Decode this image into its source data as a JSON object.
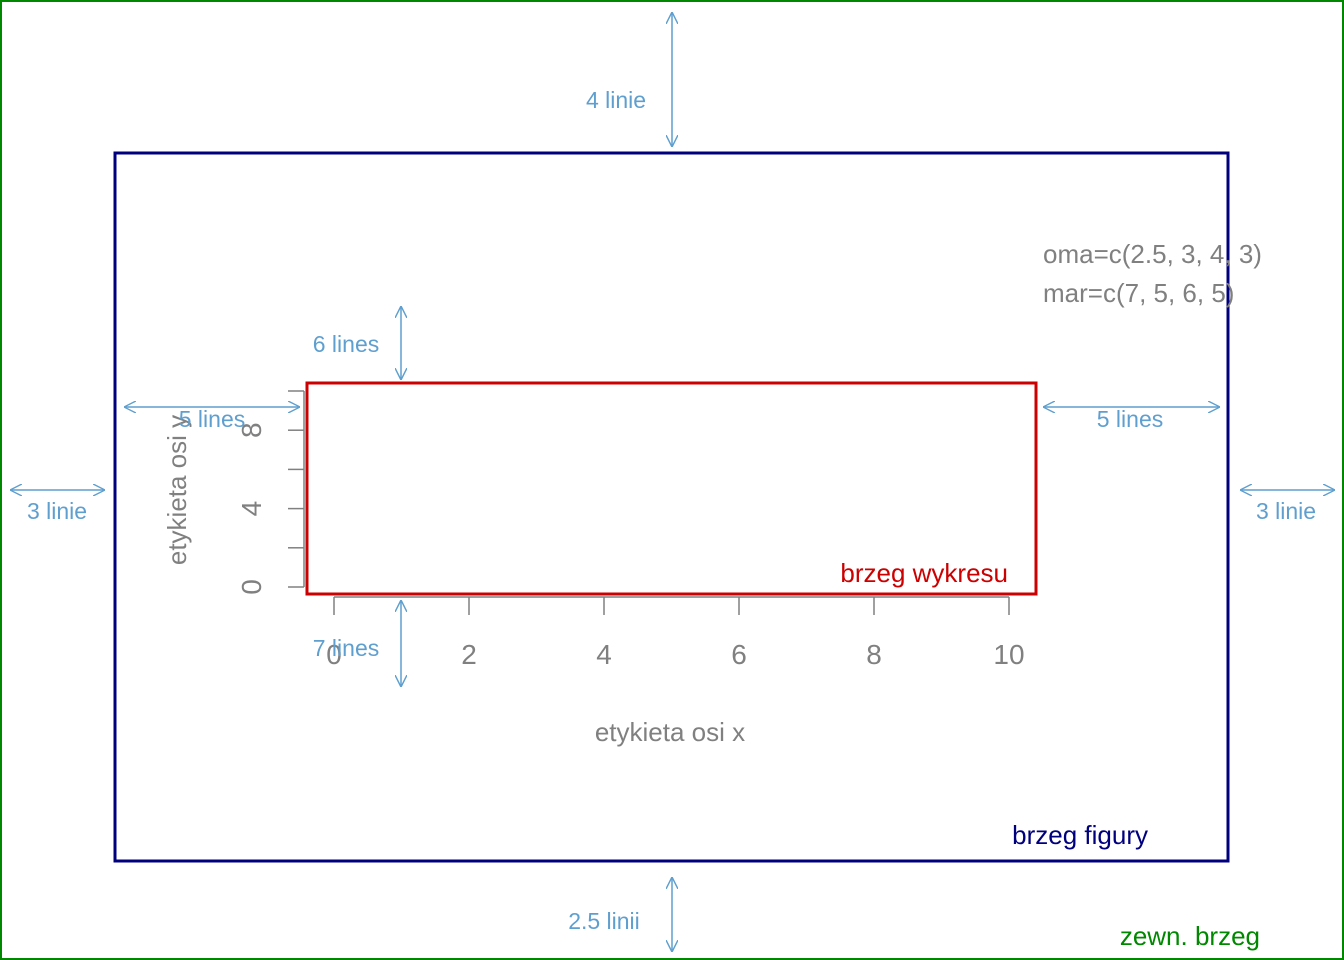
{
  "colors": {
    "outer_border": "#008800",
    "figure_border": "#00007f",
    "plot_border": "#cc0000",
    "axis": "#808080",
    "annotation": "#5f9fcf"
  },
  "labels": {
    "outer_border": "zewn. brzeg",
    "figure_border": "brzeg figury",
    "plot_border": "brzeg wykresu",
    "oma": "oma=c(2.5, 3, 4, 3)",
    "mar": "mar=c(7, 5, 6, 5)"
  },
  "margins": {
    "outer_top": "4 linie",
    "outer_bottom": "2.5 linii",
    "outer_left": "3 linie",
    "outer_right": "3 linie",
    "inner_top": "6 lines",
    "inner_bottom": "7 lines",
    "inner_left": "5 lines",
    "inner_right": "5 lines"
  },
  "chart_data": {
    "type": "scatter",
    "xlabel": "etykieta osi x",
    "ylabel": "etykieta osi y",
    "xlim": [
      0,
      10
    ],
    "ylim": [
      0,
      10
    ],
    "x_ticks": [
      0,
      2,
      4,
      6,
      8,
      10
    ],
    "y_ticks": [
      0,
      2,
      4,
      6,
      8,
      10
    ],
    "y_tick_labels": [
      0,
      4,
      8
    ],
    "points": []
  }
}
